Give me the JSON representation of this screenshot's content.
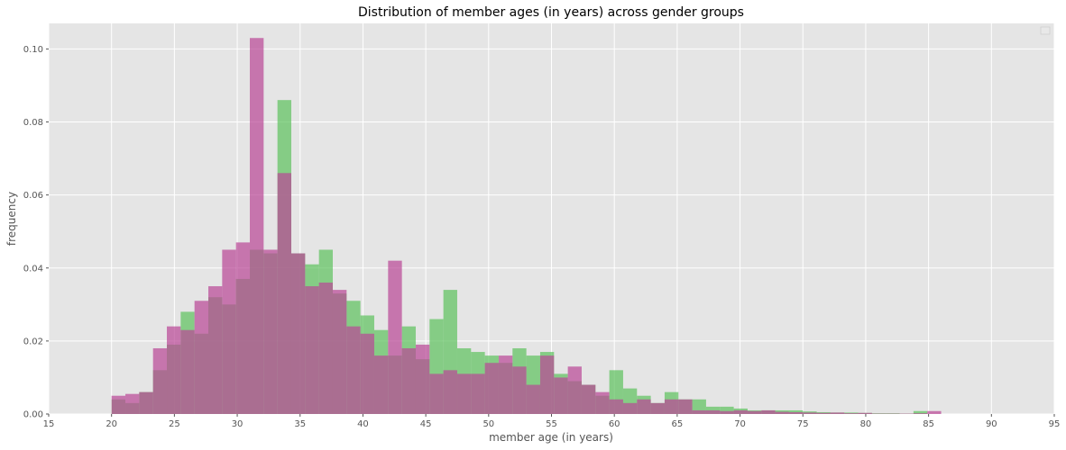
{
  "chart_data": {
    "type": "histogram",
    "title": "Distribution of member ages (in years) across gender groups",
    "xlabel": "member age (in years)",
    "ylabel": "frequency",
    "xlim": [
      15,
      95
    ],
    "ylim": [
      0,
      0.107
    ],
    "xticks": [
      15,
      20,
      25,
      30,
      35,
      40,
      45,
      50,
      55,
      60,
      65,
      70,
      75,
      80,
      85,
      90,
      95
    ],
    "yticks": [
      0.0,
      0.02,
      0.04,
      0.06,
      0.08,
      0.1
    ],
    "ytick_labels": [
      "0.00",
      "0.02",
      "0.04",
      "0.06",
      "0.08",
      "0.10"
    ],
    "grid": true,
    "legend": {
      "visible": true,
      "placement": "top-right",
      "entries": []
    },
    "bin_width": 1.1,
    "series": [
      {
        "color": "#5cc25c",
        "bin_starts": [
          20,
          21.1,
          22.2,
          23.3,
          24.4,
          25.5,
          26.6,
          27.7,
          28.8,
          29.9,
          31.0,
          32.1,
          33.2,
          34.3,
          35.4,
          36.5,
          37.6,
          38.7,
          39.8,
          40.9,
          42.0,
          43.1,
          44.2,
          45.3,
          46.4,
          47.5,
          48.6,
          49.7,
          50.8,
          51.9,
          53.0,
          54.1,
          55.2,
          56.3,
          57.4,
          58.5,
          59.6,
          60.7,
          61.8,
          62.9,
          64.0,
          65.1,
          66.2,
          67.3,
          68.4,
          69.5,
          70.6,
          71.7,
          72.8,
          73.9,
          75.0,
          76.1,
          77.2,
          78.3,
          79.4,
          80.5,
          81.6,
          82.7,
          83.8
        ],
        "values": [
          0.004,
          0.003,
          0.006,
          0.012,
          0.019,
          0.028,
          0.022,
          0.032,
          0.03,
          0.037,
          0.045,
          0.044,
          0.086,
          0.044,
          0.041,
          0.045,
          0.033,
          0.031,
          0.027,
          0.023,
          0.016,
          0.024,
          0.015,
          0.026,
          0.034,
          0.018,
          0.017,
          0.016,
          0.014,
          0.018,
          0.016,
          0.017,
          0.011,
          0.009,
          0.008,
          0.005,
          0.012,
          0.007,
          0.005,
          0.003,
          0.006,
          0.004,
          0.004,
          0.002,
          0.002,
          0.0015,
          0.001,
          0.001,
          0.001,
          0.001,
          0.0007,
          0.0005,
          0.0004,
          0.0004,
          0.0003,
          0.0002,
          0.0002,
          0.0001,
          0.0008
        ]
      },
      {
        "color": "#b94695",
        "bin_starts": [
          20,
          21.1,
          22.2,
          23.3,
          24.4,
          25.5,
          26.6,
          27.7,
          28.8,
          29.9,
          31.0,
          32.1,
          33.2,
          34.3,
          35.4,
          36.5,
          37.6,
          38.7,
          39.8,
          40.9,
          42.0,
          43.1,
          44.2,
          45.3,
          46.4,
          47.5,
          48.6,
          49.7,
          50.8,
          51.9,
          53.0,
          54.1,
          55.2,
          56.3,
          57.4,
          58.5,
          59.6,
          60.7,
          61.8,
          62.9,
          64.0,
          65.1,
          66.2,
          67.3,
          68.4,
          69.5,
          70.6,
          71.7,
          72.8,
          73.9,
          75.0,
          76.1,
          77.2,
          78.3,
          79.4,
          80.5,
          81.6,
          82.7,
          83.8,
          84.9
        ],
        "values": [
          0.005,
          0.0055,
          0.006,
          0.018,
          0.024,
          0.023,
          0.031,
          0.035,
          0.045,
          0.047,
          0.103,
          0.045,
          0.066,
          0.044,
          0.035,
          0.036,
          0.034,
          0.024,
          0.022,
          0.016,
          0.042,
          0.018,
          0.019,
          0.011,
          0.012,
          0.011,
          0.011,
          0.014,
          0.016,
          0.013,
          0.008,
          0.016,
          0.01,
          0.013,
          0.008,
          0.006,
          0.004,
          0.003,
          0.004,
          0.003,
          0.004,
          0.004,
          0.001,
          0.001,
          0.0008,
          0.001,
          0.0008,
          0.001,
          0.0006,
          0.0005,
          0.0004,
          0.0003,
          0.0004,
          0.0002,
          0.0003,
          0.0001,
          0.0001,
          0.0001,
          0.0002,
          0.0008
        ]
      }
    ]
  }
}
